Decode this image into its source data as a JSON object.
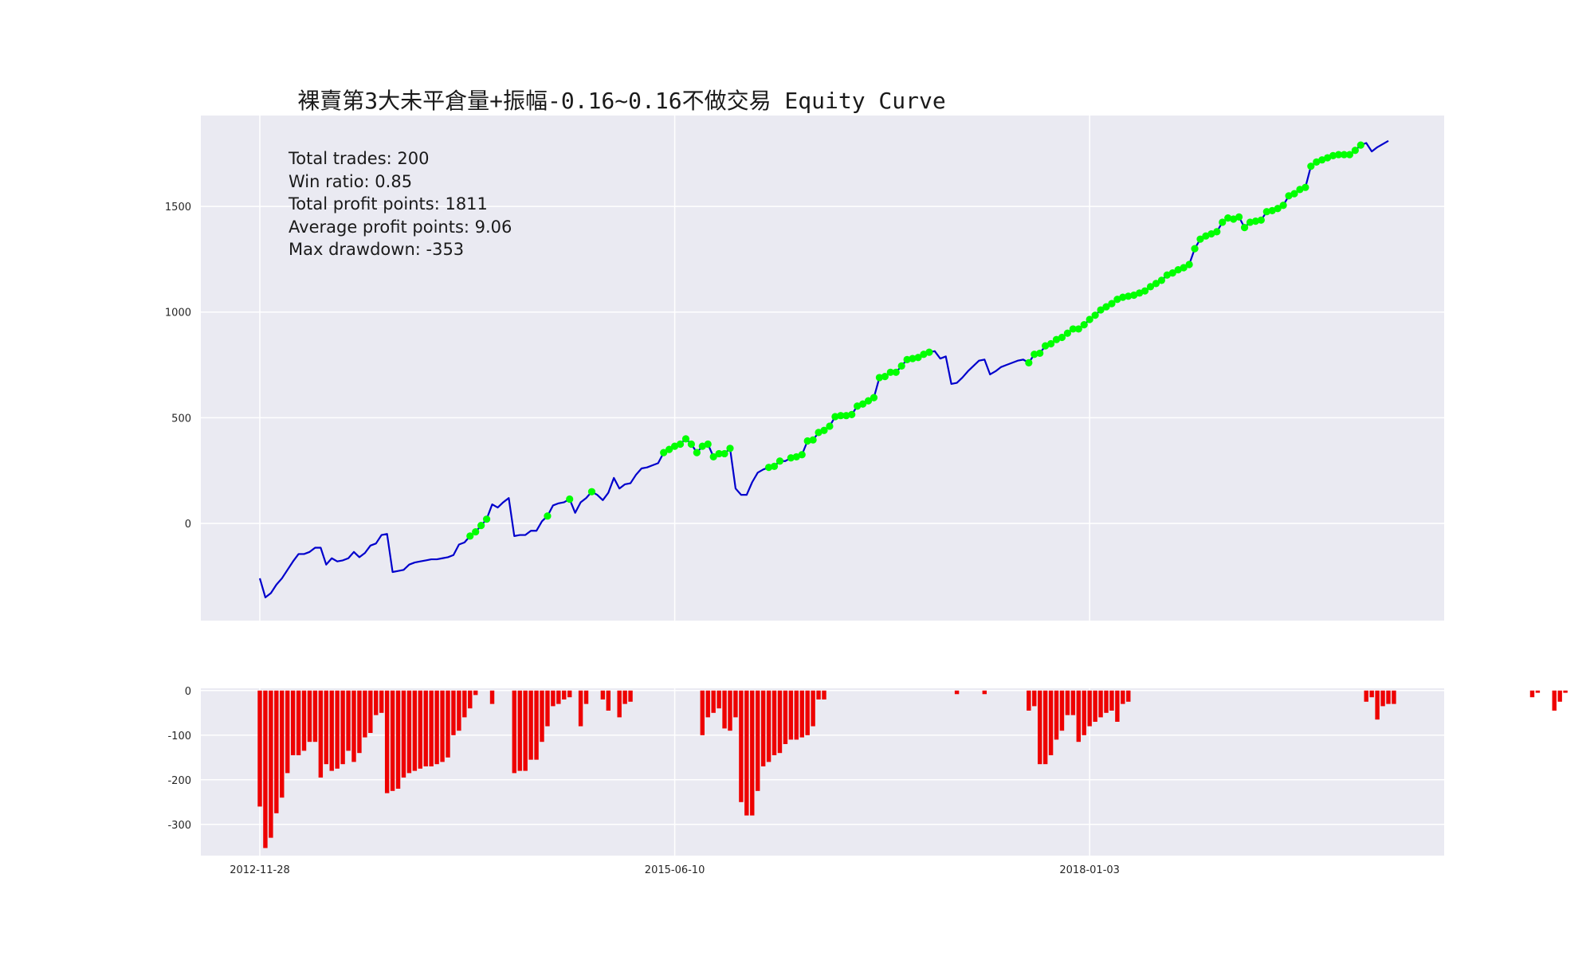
{
  "chart_data": [
    {
      "type": "line",
      "title": "裸賣第3大未平倉量+振幅-0.16~0.16不做交易 Equity Curve",
      "xlabel": "",
      "ylabel": "",
      "x_tick_labels": [
        "2012-11-28",
        "2015-06-10",
        "2018-01-03"
      ],
      "x_tick_index": [
        0,
        75,
        150
      ],
      "ylim": [
        -460,
        1930
      ],
      "y_ticks": [
        0,
        500,
        1000,
        1500
      ],
      "grid": true,
      "background": "#EAEAF2",
      "series": [
        {
          "style": "line",
          "color": "#0000CC",
          "values": [
            -260,
            -350,
            -330,
            -290,
            -260,
            -220,
            -180,
            -145,
            -145,
            -135,
            -115,
            -115,
            -195,
            -165,
            -180,
            -175,
            -165,
            -135,
            -160,
            -140,
            -105,
            -95,
            -55,
            -50,
            -230,
            -225,
            -220,
            -195,
            -185,
            -180,
            -175,
            -170,
            -170,
            -165,
            -160,
            -150,
            -100,
            -90,
            -60,
            -40,
            -10,
            20,
            90,
            75,
            100,
            120,
            -60,
            -55,
            -55,
            -35,
            -35,
            10,
            35,
            85,
            95,
            100,
            115,
            50,
            100,
            120,
            150,
            135,
            110,
            145,
            215,
            165,
            185,
            190,
            230,
            260,
            265,
            275,
            285,
            335,
            350,
            365,
            375,
            400,
            375,
            335,
            365,
            375,
            315,
            330,
            330,
            355,
            165,
            135,
            135,
            195,
            240,
            255,
            265,
            270,
            295,
            295,
            310,
            315,
            325,
            390,
            395,
            430,
            440,
            460,
            505,
            510,
            510,
            515,
            555,
            565,
            580,
            595,
            690,
            695,
            715,
            715,
            745,
            775,
            780,
            785,
            800,
            810,
            815,
            780,
            790,
            660,
            665,
            690,
            720,
            745,
            770,
            775,
            705,
            720,
            740,
            750,
            760,
            770,
            775,
            760,
            800,
            805,
            840,
            850,
            870,
            880,
            900,
            920,
            920,
            940,
            965,
            985,
            1010,
            1025,
            1040,
            1060,
            1070,
            1075,
            1080,
            1090,
            1100,
            1120,
            1135,
            1150,
            1175,
            1185,
            1200,
            1210,
            1225,
            1300,
            1345,
            1360,
            1370,
            1380,
            1425,
            1445,
            1440,
            1450,
            1400,
            1425,
            1430,
            1435,
            1475,
            1480,
            1490,
            1505,
            1550,
            1560,
            1580,
            1590,
            1690,
            1710,
            1720,
            1730,
            1740,
            1745,
            1745,
            1745,
            1765,
            1790,
            1800,
            1760,
            1780,
            1795,
            1810
          ]
        },
        {
          "style": "markers",
          "name": "",
          "color": "#00FF00",
          "note": "new equity high points",
          "indices": [
            38,
            39,
            40,
            41,
            52,
            56,
            60,
            73,
            74,
            75,
            76,
            77,
            78,
            79,
            80,
            81,
            82,
            83,
            84,
            85,
            92,
            93,
            94,
            96,
            97,
            98,
            99,
            100,
            101,
            102,
            103,
            104,
            105,
            106,
            107,
            108,
            109,
            110,
            111,
            112,
            113,
            114,
            115,
            116,
            117,
            118,
            119,
            120,
            121,
            139,
            140,
            141,
            142,
            143,
            144,
            145,
            146,
            147,
            148,
            149,
            150,
            151,
            152,
            153,
            154,
            155,
            156,
            157,
            158,
            159,
            160,
            161,
            162,
            163,
            164,
            165,
            166,
            167,
            168,
            169,
            170,
            171,
            172,
            173,
            174,
            175,
            176,
            177,
            178,
            179,
            180,
            181,
            182,
            183,
            184,
            185,
            186,
            187,
            188,
            189,
            190,
            191,
            192,
            193,
            194,
            195,
            196,
            197,
            198,
            199
          ]
        }
      ]
    },
    {
      "type": "bar",
      "title": "",
      "ylim": [
        -370,
        5
      ],
      "y_ticks": [
        0,
        -100,
        -200,
        -300
      ],
      "grid": true,
      "background": "#EAEAF2",
      "color": "#EE0000",
      "x_tick_labels": [
        "2012-11-28",
        "2015-06-10",
        "2018-01-03"
      ],
      "x_tick_index": [
        0,
        75,
        150
      ],
      "values": [
        -260,
        -353,
        -330,
        -275,
        -240,
        -185,
        -145,
        -145,
        -135,
        -115,
        -115,
        -195,
        -165,
        -180,
        -175,
        -165,
        -135,
        -160,
        -140,
        -105,
        -95,
        -55,
        -50,
        -230,
        -225,
        -220,
        -195,
        -185,
        -180,
        -175,
        -170,
        -170,
        -165,
        -160,
        -150,
        -100,
        -90,
        -60,
        -40,
        -10,
        0,
        0,
        -30,
        0,
        0,
        0,
        -185,
        -180,
        -180,
        -155,
        -155,
        -115,
        -80,
        -35,
        -30,
        -20,
        -15,
        0,
        -80,
        -30,
        0,
        0,
        -20,
        -45,
        0,
        -60,
        -30,
        -25,
        0,
        0,
        0,
        0,
        0,
        0,
        0,
        0,
        0,
        0,
        0,
        0,
        -100,
        -60,
        -50,
        -40,
        -85,
        -90,
        -60,
        -250,
        -280,
        -280,
        -225,
        -170,
        -160,
        -145,
        -140,
        -120,
        -110,
        -110,
        -105,
        -100,
        -80,
        -20,
        -20,
        0,
        0,
        0,
        0,
        0,
        0,
        0,
        0,
        0,
        0,
        0,
        0,
        0,
        0,
        0,
        0,
        0,
        0,
        0,
        0,
        0,
        0,
        0,
        -8,
        0,
        0,
        0,
        0,
        -8,
        0,
        0,
        0,
        0,
        0,
        0,
        0,
        -45,
        -35,
        -165,
        -165,
        -145,
        -110,
        -90,
        -55,
        -55,
        -115,
        -100,
        -80,
        -70,
        -60,
        -50,
        -45,
        -70,
        -30,
        -25,
        0,
        0,
        0,
        0,
        0,
        0,
        0,
        0,
        0,
        0,
        0,
        0,
        0,
        0,
        0,
        0,
        0,
        0,
        0,
        0,
        0,
        0,
        0,
        0,
        0,
        0,
        0,
        0,
        0,
        0,
        0,
        0,
        0,
        0,
        0,
        0,
        0,
        0,
        0,
        0,
        0,
        0,
        -25,
        -15,
        -65,
        -35,
        -30,
        -30,
        0,
        0,
        0,
        0,
        0,
        0,
        0,
        0,
        0,
        0,
        0,
        0,
        0,
        0,
        0,
        0,
        0,
        0,
        0,
        0,
        0,
        0,
        0,
        0,
        -15,
        -5,
        0,
        0,
        -45,
        -25,
        -5,
        0
      ]
    }
  ],
  "annotations": {
    "total_trades": "Total trades: 200",
    "win_ratio": "Win ratio: 0.85",
    "total_profit": "Total profit points: 1811",
    "avg_profit": "Average profit points: 9.06",
    "max_drawdown": "Max drawdown: -353"
  }
}
